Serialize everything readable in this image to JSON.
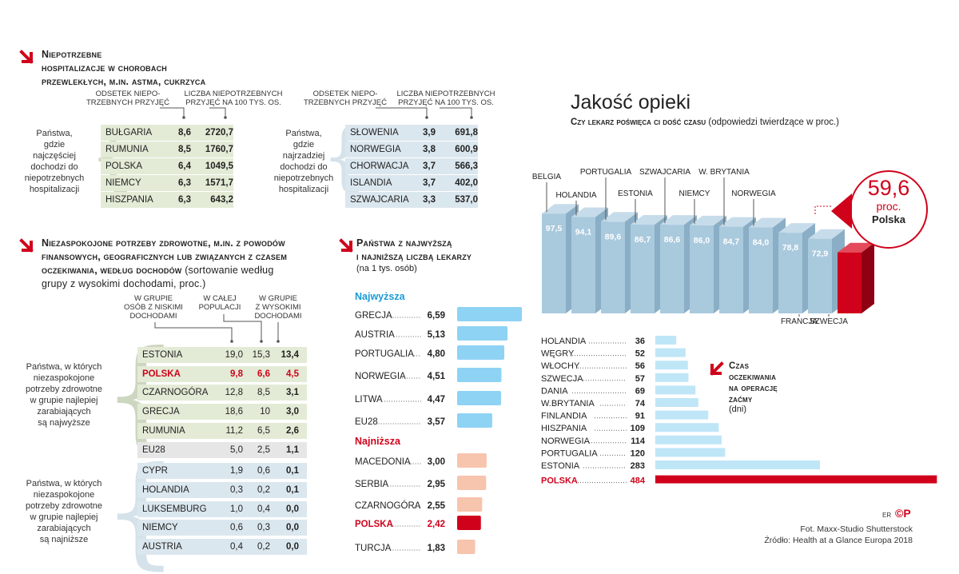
{
  "colors": {
    "red": "#d0021b",
    "green_row": "#e3ebd6",
    "blue_row": "#dbe7ee",
    "grey_row": "#e6e6e6",
    "light_blue_bar": "#8fd3f4",
    "pink_bar": "#f7c4ad",
    "wait_bar": "#bfe6f7",
    "bar3d_front": "#a9c9dd",
    "accent_blue": "#1a9ad6"
  },
  "hosp": {
    "title_lines": [
      "Niepotrzebne",
      "hospitalizacje w chorobach",
      "przewlekłych, m.in. astma, cukrzyca"
    ],
    "col1": [
      "ODSETEK NIEPO-",
      "TRZEBNYCH PRZYJĘĆ"
    ],
    "col2": [
      "LICZBA NIEPOTRZEBNYCH",
      "PRZYJĘĆ NA 100 TYS. OS."
    ],
    "left_label": [
      "Państwa,",
      "gdzie",
      "najczęściej",
      "dochodzi do",
      "niepotrzebnych",
      "hospitalizacji"
    ],
    "right_label": [
      "Państwa,",
      "gdzie",
      "najrzadziej",
      "dochodzi do",
      "niepotrzebnych",
      "hospitalizacji"
    ],
    "left_rows": [
      [
        "BUŁGARIA",
        "8,6",
        "2720,7"
      ],
      [
        "RUMUNIA",
        "8,5",
        "1760,7"
      ],
      [
        "POLSKA",
        "6,4",
        "1049,5"
      ],
      [
        "NIEMCY",
        "6,3",
        "1571,7"
      ],
      [
        "HISZPANIA",
        "6,3",
        "643,2"
      ]
    ],
    "right_rows": [
      [
        "SŁOWENIA",
        "3,9",
        "691,8"
      ],
      [
        "NORWEGIA",
        "3,8",
        "600,9"
      ],
      [
        "CHORWACJA",
        "3,7",
        "566,3"
      ],
      [
        "ISLANDIA",
        "3,7",
        "402,0"
      ],
      [
        "SZWAJCARIA",
        "3,3",
        "537,0"
      ]
    ]
  },
  "unmet": {
    "title_lines": [
      "Niezaspokojone potrzeby zdrowotne, m.in. z powodów",
      "finansowych, geograficznych lub związanych z czasem",
      "oczekiwania, według dochodów"
    ],
    "title_tail": " (sortowanie według",
    "title_tail2": "grupy z wysokimi dochodami, proc.)",
    "col1": [
      "W GRUPIE",
      "OSÓB Z NISKIMI",
      "DOCHODAMI"
    ],
    "col2": [
      "W CAŁEJ",
      "POPULACJI"
    ],
    "col3": [
      "W GRUPIE",
      "Z WYSOKIMI",
      "DOCHODAMI"
    ],
    "top_label": [
      "Państwa, w których",
      "niezaspokojone",
      "potrzeby zdrowotne",
      "w grupie najlepiej",
      "zarabiających",
      "są najwyższe"
    ],
    "bottom_label": [
      "Państwa, w których",
      "niezaspokojone",
      "potrzeby zdrowotne",
      "w grupie najlepiej",
      "zarabiających",
      "są najniższe"
    ],
    "top_rows": [
      [
        "ESTONIA",
        "19,0",
        "15,3",
        "13,4"
      ],
      [
        "POLSKA",
        "9,8",
        "6,6",
        "4,5"
      ],
      [
        "CZARNOGÓRA",
        "12,8",
        "8,5",
        "3,1"
      ],
      [
        "GRECJA",
        "18,6",
        "10",
        "3,0"
      ],
      [
        "RUMUNIA",
        "11,2",
        "6,5",
        "2,6"
      ]
    ],
    "eu_row": [
      "EU28",
      "5,0",
      "2,5",
      "1,1"
    ],
    "bottom_rows": [
      [
        "CYPR",
        "1,9",
        "0,6",
        "0,1"
      ],
      [
        "HOLANDIA",
        "0,3",
        "0,2",
        "0,1"
      ],
      [
        "LUKSEMBURG",
        "1,0",
        "0,4",
        "0,0"
      ],
      [
        "NIEMCY",
        "0,6",
        "0,3",
        "0,0"
      ],
      [
        "AUSTRIA",
        "0,4",
        "0,2",
        "0,0"
      ]
    ]
  },
  "doctors": {
    "title_lines": [
      "Państwa z najwyższą",
      "i najniższą liczbą lekarzy"
    ],
    "subtitle": "(na 1 tys. osób)",
    "high_label": "Najwyższa",
    "low_label": "Najniższa"
  },
  "quality": {
    "title": "Jakość opieki",
    "subtitle_bold": "Czy lekarz poświęca ci dość czasu",
    "subtitle_rest": " (odpowiedzi twierdzące w proc.)",
    "callout_value": "59,6",
    "callout_unit": "proc.",
    "callout_country": "Polska"
  },
  "wait": {
    "title_lines": [
      "Czas",
      "oczekiwania",
      "na operację",
      "zaćmy"
    ],
    "subtitle": "(dni)"
  },
  "credits": {
    "mark": "ER",
    "logo": "©P",
    "photo": "Fot. Maxx-Studio Shutterstock",
    "source": "Źródło: Health at a Glance Europa 2018"
  },
  "chart_data": [
    {
      "type": "bar",
      "title": "Państwa z najwyższą i najniższą liczbą lekarzy",
      "subtitle": "(na 1 tys. osób)",
      "categories": [
        "GRECJA",
        "AUSTRIA",
        "PORTUGALIA",
        "NORWEGIA",
        "LITWA",
        "EU28",
        "MACEDONIA",
        "SERBIA",
        "CZARNOGÓRA",
        "POLSKA",
        "TURCJA"
      ],
      "values": [
        6.59,
        5.13,
        4.8,
        4.51,
        4.47,
        3.57,
        3.0,
        2.95,
        2.55,
        2.42,
        1.83
      ],
      "labels": [
        "6,59",
        "5,13",
        "4,80",
        "4,51",
        "4,47",
        "3,57",
        "3,00",
        "2,95",
        "2,55",
        "2,42",
        "1,83"
      ],
      "groups": [
        "Najwyższa",
        "Najwyższa",
        "Najwyższa",
        "Najwyższa",
        "Najwyższa",
        "Najwyższa",
        "Najniższa",
        "Najniższa",
        "Najniższa",
        "Najniższa",
        "Najniższa"
      ]
    },
    {
      "type": "bar",
      "title": "Jakość opieki",
      "subtitle": "Czy lekarz poświęca ci dość czasu (odpowiedzi twierdzące w proc.)",
      "categories": [
        "BELGIA",
        "HOLANDIA",
        "PORTUGALIA",
        "ESTONIA",
        "SZWAJCARIA",
        "NIEMCY",
        "W. BRYTANIA",
        "NORWEGIA",
        "FRANCJA",
        "SZWECJA",
        "POLSKA"
      ],
      "values": [
        97.5,
        94.1,
        89.6,
        86.7,
        86.6,
        86.0,
        84.7,
        84.0,
        78.8,
        72.9,
        59.6
      ],
      "labels": [
        "97,5",
        "94,1",
        "89,6",
        "86,7",
        "86,6",
        "86,0",
        "84,7",
        "84,0",
        "78,8",
        "72,9",
        "59,6"
      ]
    },
    {
      "type": "bar",
      "title": "Czas oczekiwania na operację zaćmy",
      "subtitle": "(dni)",
      "categories": [
        "HOLANDIA",
        "WĘGRY",
        "WŁOCHY",
        "SZWECJA",
        "DANIA",
        "W.BRYTANIA",
        "FINLANDIA",
        "HISZPANIA",
        "NORWEGIA",
        "PORTUGALIA",
        "ESTONIA",
        "POLSKA"
      ],
      "values": [
        36,
        52,
        56,
        57,
        69,
        74,
        91,
        109,
        114,
        120,
        283,
        484
      ]
    }
  ]
}
